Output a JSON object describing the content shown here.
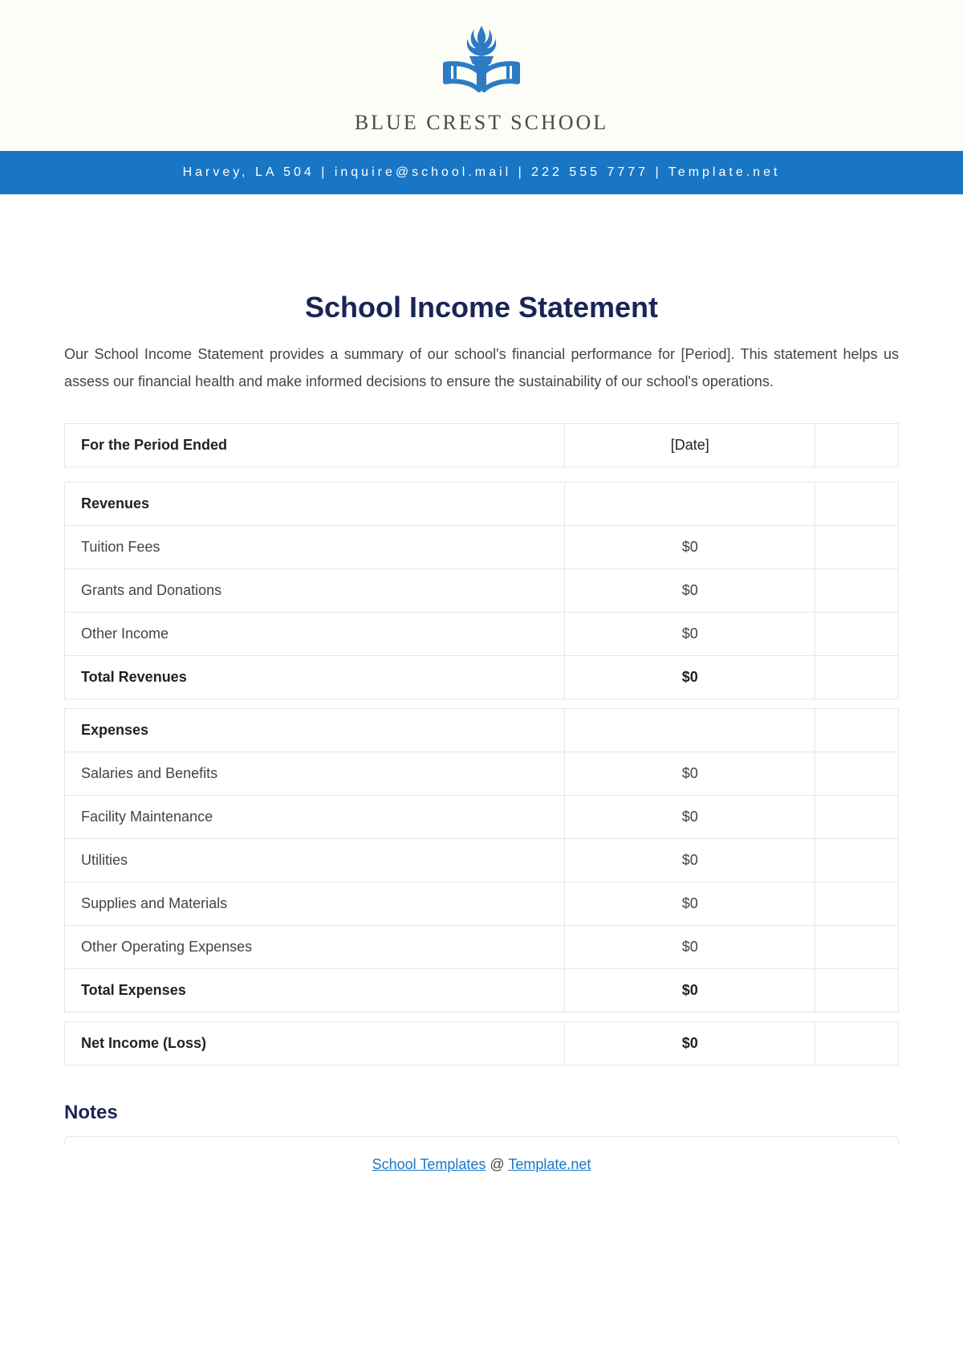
{
  "header": {
    "school_name": "BLUE CREST SCHOOL",
    "contact_line": "Harvey, LA 504 | inquire@school.mail | 222 555 7777 | Template.net",
    "logo_color": "#2b7cc4",
    "bar_bg": "#1976c5",
    "bar_text_color": "#ffffff",
    "top_bg": "#fdfdf7"
  },
  "main": {
    "title": "School Income Statement",
    "title_color": "#1a2556",
    "intro": "Our School Income Statement provides a summary of our school's financial performance for [Period]. This statement helps us assess our financial health and make informed decisions to ensure the sustainability of our school's operations.",
    "period_label": "For the Period Ended",
    "period_value": "[Date]"
  },
  "table": {
    "border_color": "#e6e6e6",
    "text_color": "#444444",
    "bold_color": "#222222",
    "sections": [
      {
        "heading": "Revenues",
        "rows": [
          {
            "label": "Tuition Fees",
            "value": "$0"
          },
          {
            "label": "Grants and Donations",
            "value": "$0"
          },
          {
            "label": "Other Income",
            "value": "$0"
          }
        ],
        "total": {
          "label": "Total Revenues",
          "value": "$0"
        }
      },
      {
        "heading": "Expenses",
        "rows": [
          {
            "label": "Salaries and Benefits",
            "value": "$0"
          },
          {
            "label": "Facility Maintenance",
            "value": "$0"
          },
          {
            "label": "Utilities",
            "value": "$0"
          },
          {
            "label": "Supplies and Materials",
            "value": "$0"
          },
          {
            "label": "Other Operating Expenses",
            "value": "$0"
          }
        ],
        "total": {
          "label": "Total Expenses",
          "value": "$0"
        }
      }
    ],
    "net": {
      "label": "Net Income (Loss)",
      "value": "$0"
    }
  },
  "notes": {
    "heading": "Notes"
  },
  "footer": {
    "link1_text": "School Templates",
    "separator": " @ ",
    "link2_text": "Template.net",
    "link_color": "#1976c5"
  }
}
